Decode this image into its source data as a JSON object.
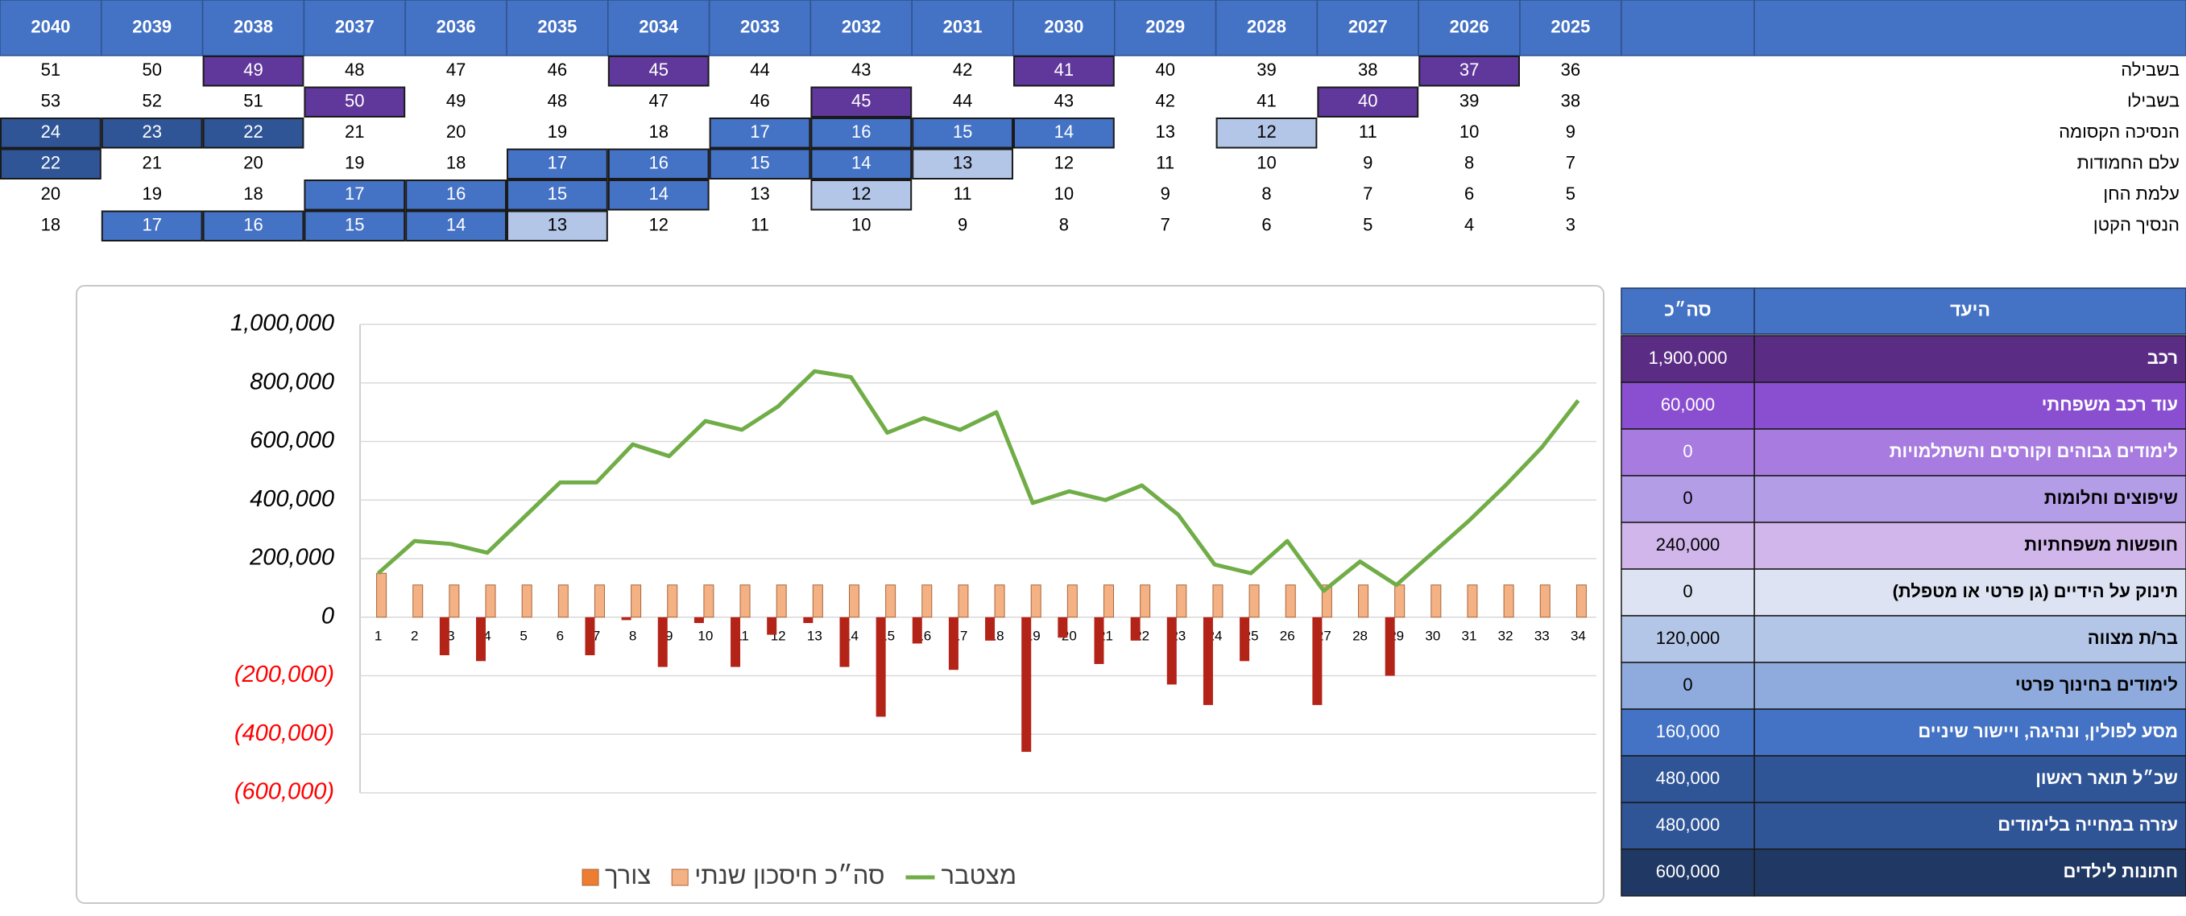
{
  "table": {
    "years": [
      2040,
      2039,
      2038,
      2037,
      2036,
      2035,
      2034,
      2033,
      2032,
      2031,
      2030,
      2029,
      2028,
      2027,
      2026,
      2025
    ],
    "rows": [
      {
        "name": "בשבילה",
        "values": [
          51,
          50,
          49,
          48,
          47,
          46,
          45,
          44,
          43,
          42,
          41,
          40,
          39,
          38,
          37,
          36
        ],
        "cell_colors": [
          null,
          null,
          "#60379a",
          null,
          null,
          null,
          "#60379a",
          null,
          null,
          null,
          "#60379a",
          null,
          null,
          null,
          "#60379a",
          null
        ]
      },
      {
        "name": "בשבילו",
        "values": [
          53,
          52,
          51,
          50,
          49,
          48,
          47,
          46,
          45,
          44,
          43,
          42,
          41,
          40,
          39,
          38
        ],
        "cell_colors": [
          null,
          null,
          null,
          "#60379a",
          null,
          null,
          null,
          null,
          "#60379a",
          null,
          null,
          null,
          null,
          "#60379a",
          null,
          null
        ]
      },
      {
        "name": "הנסיכה הקסומה",
        "values": [
          24,
          23,
          22,
          21,
          20,
          19,
          18,
          17,
          16,
          15,
          14,
          13,
          12,
          11,
          10,
          9
        ],
        "cell_colors": [
          "#2f5597",
          "#2f5597",
          "#2f5597",
          null,
          null,
          null,
          null,
          "#4472c4",
          "#4472c4",
          "#4472c4",
          "#4472c4",
          null,
          "#b4c6e7",
          null,
          null,
          null
        ]
      },
      {
        "name": "עלם החמודות",
        "values": [
          22,
          21,
          20,
          19,
          18,
          17,
          16,
          15,
          14,
          13,
          12,
          11,
          10,
          9,
          8,
          7
        ],
        "cell_colors": [
          "#2f5597",
          null,
          null,
          null,
          null,
          "#4472c4",
          "#4472c4",
          "#4472c4",
          "#4472c4",
          "#b4c6e7",
          null,
          null,
          null,
          null,
          null,
          null
        ]
      },
      {
        "name": "עלמת החן",
        "values": [
          20,
          19,
          18,
          17,
          16,
          15,
          14,
          13,
          12,
          11,
          10,
          9,
          8,
          7,
          6,
          5
        ],
        "cell_colors": [
          null,
          null,
          null,
          "#4472c4",
          "#4472c4",
          "#4472c4",
          "#4472c4",
          null,
          "#b4c6e7",
          null,
          null,
          null,
          null,
          null,
          null,
          null
        ]
      },
      {
        "name": "הנסיך הקטן",
        "values": [
          18,
          17,
          16,
          15,
          14,
          13,
          12,
          11,
          10,
          9,
          8,
          7,
          6,
          5,
          4,
          3
        ],
        "cell_colors": [
          null,
          "#4472c4",
          "#4472c4",
          "#4472c4",
          "#4472c4",
          "#b4c6e7",
          null,
          null,
          null,
          null,
          null,
          null,
          null,
          null,
          null,
          null
        ]
      }
    ]
  },
  "chart_data": {
    "type": "combo",
    "categories": [
      1,
      2,
      3,
      4,
      5,
      6,
      7,
      8,
      9,
      10,
      11,
      12,
      13,
      14,
      15,
      16,
      17,
      18,
      19,
      20,
      21,
      22,
      23,
      24,
      25,
      26,
      27,
      28,
      29,
      30,
      31,
      32,
      33,
      34
    ],
    "series": [
      {
        "name": "מצטבר",
        "type": "line",
        "color": "#70ad47",
        "values": [
          150000,
          260000,
          250000,
          220000,
          340000,
          460000,
          460000,
          590000,
          550000,
          670000,
          640000,
          720000,
          840000,
          820000,
          630000,
          680000,
          640000,
          700000,
          390000,
          430000,
          400000,
          450000,
          350000,
          180000,
          150000,
          260000,
          90000,
          190000,
          110000,
          220000,
          330000,
          450000,
          580000,
          740000
        ]
      },
      {
        "name": "סה״כ חיסכון שנתי",
        "type": "bar",
        "color": "#f4b183",
        "values": [
          150000,
          110000,
          110000,
          110000,
          110000,
          110000,
          110000,
          110000,
          110000,
          110000,
          110000,
          110000,
          110000,
          110000,
          110000,
          110000,
          110000,
          110000,
          110000,
          110000,
          110000,
          110000,
          110000,
          110000,
          110000,
          110000,
          110000,
          110000,
          110000,
          110000,
          110000,
          110000,
          110000,
          110000
        ]
      },
      {
        "name": "צורך",
        "type": "bar",
        "color": "#ed7d31",
        "bar_color": "#b42318",
        "values": [
          0,
          0,
          -130000,
          -150000,
          0,
          0,
          -130000,
          -10000,
          -170000,
          -20000,
          -170000,
          -60000,
          -20000,
          -170000,
          -340000,
          -90000,
          -180000,
          -80000,
          -460000,
          -70000,
          -160000,
          -80000,
          -230000,
          -300000,
          -150000,
          0,
          -300000,
          0,
          -200000,
          0,
          0,
          0,
          0,
          0
        ]
      }
    ],
    "ylim": [
      -600000,
      1000000
    ],
    "yticks": [
      {
        "value": 1000000,
        "label": "1,000,000"
      },
      {
        "value": 800000,
        "label": "800,000"
      },
      {
        "value": 600000,
        "label": "600,000"
      },
      {
        "value": 400000,
        "label": "400,000"
      },
      {
        "value": 200000,
        "label": "200,000"
      },
      0,
      {
        "value": -200000,
        "label": "(200,000)"
      },
      {
        "value": -400000,
        "label": "(400,000)"
      },
      {
        "value": -600000,
        "label": "(600,000)"
      }
    ],
    "negative_tick_color": "#ff0000",
    "grid": true,
    "legend": "bottom"
  },
  "goals": {
    "header": [
      "היעד",
      "סה״כ"
    ],
    "rows": [
      {
        "name": "רכב",
        "total": "1,900,000",
        "color": "#5b2c84"
      },
      {
        "name": "עוד רכב משפחתי",
        "total": "60,000",
        "color": "#8a4fd0"
      },
      {
        "name": "לימודים גבוהים וקורסים והשתלמויות",
        "total": "0",
        "color": "#a77be0"
      },
      {
        "name": "שיפוצים וחלומות",
        "total": "0",
        "color": "#b39de6"
      },
      {
        "name": "חופשות משפחתיות",
        "total": "240,000",
        "color": "#d0b6ea"
      },
      {
        "name": "תינוק על הידיים (גן פרטי או מטפלת)",
        "total": "0",
        "color": "#dde3f2"
      },
      {
        "name": "בר/ת מצווה",
        "total": "120,000",
        "color": "#b4c6e7"
      },
      {
        "name": "לימודים בחינוך פרטי",
        "total": "0",
        "color": "#8faadc"
      },
      {
        "name": "מסע לפולין, ונהיגה, ויישור שיניים",
        "total": "160,000",
        "color": "#4472c4"
      },
      {
        "name": "שכ״ל תואר ראשון",
        "total": "480,000",
        "color": "#2f5597"
      },
      {
        "name": "עזרה במחייה בלימודים",
        "total": "480,000",
        "color": "#2f5597"
      },
      {
        "name": "חתונות לילדים",
        "total": "600,000",
        "color": "#203864"
      }
    ]
  }
}
